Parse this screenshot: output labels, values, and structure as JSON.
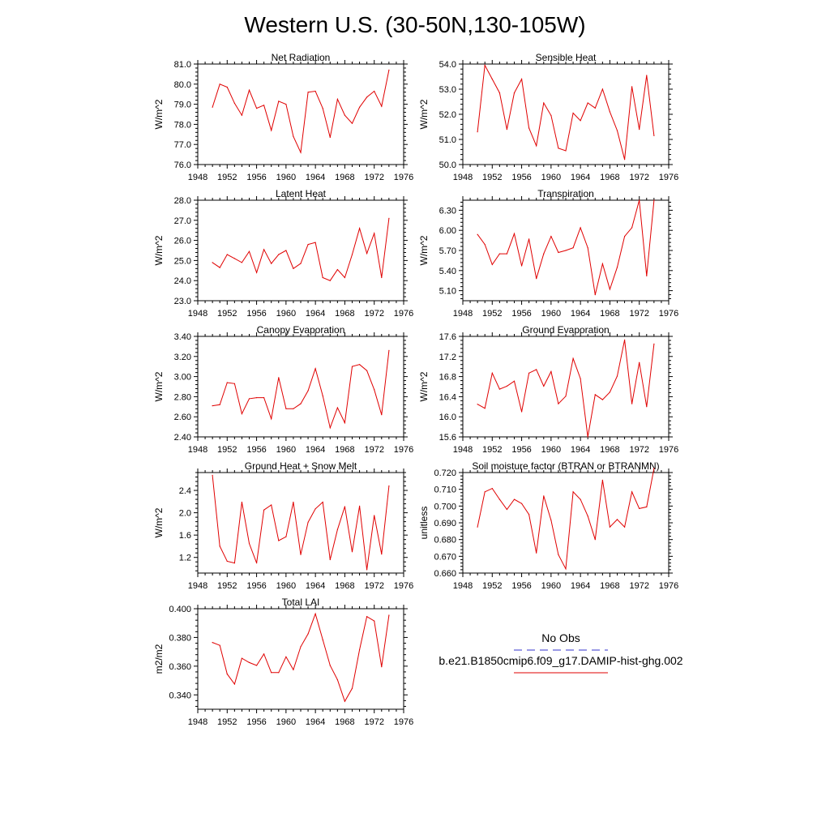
{
  "figure_title": "Western U.S. (30-50N,130-105W)",
  "colors": {
    "model": "#e00000",
    "obs": "#3333cc",
    "axis": "#000000"
  },
  "legend": {
    "obs_label": "No Obs",
    "model_label": "b.e21.B1850cmip6.f09_g17.DAMIP-hist-ghg.002"
  },
  "chart_data": [
    {
      "type": "line",
      "title": "Net Radiation",
      "ylabel": "W/m^2",
      "xlim": [
        1948,
        1976
      ],
      "ylim": [
        76.0,
        81.0
      ],
      "xticks": [
        1948,
        1952,
        1956,
        1960,
        1964,
        1968,
        1972,
        1976
      ],
      "yticks": [
        "76.0",
        "77.0",
        "78.0",
        "79.0",
        "80.0",
        "81.0"
      ],
      "x": [
        1950,
        1951,
        1952,
        1953,
        1954,
        1955,
        1956,
        1957,
        1958,
        1959,
        1960,
        1961,
        1962,
        1963,
        1964,
        1965,
        1966,
        1967,
        1968,
        1969,
        1970,
        1971,
        1972,
        1973,
        1974
      ],
      "series": [
        {
          "values": [
            78.85,
            80.0,
            79.85,
            79.05,
            78.45,
            79.7,
            78.8,
            78.95,
            77.7,
            79.15,
            79.0,
            77.4,
            76.6,
            79.6,
            79.65,
            78.8,
            77.35,
            79.25,
            78.45,
            78.05,
            78.85,
            79.35,
            79.65,
            78.9,
            80.7
          ]
        }
      ]
    },
    {
      "type": "line",
      "title": "Sensible Heat",
      "ylabel": "W/m^2",
      "xlim": [
        1948,
        1976
      ],
      "ylim": [
        50.0,
        54.0
      ],
      "xticks": [
        1948,
        1952,
        1956,
        1960,
        1964,
        1968,
        1972,
        1976
      ],
      "yticks": [
        "50.0",
        "51.0",
        "52.0",
        "53.0",
        "54.0"
      ],
      "x": [
        1950,
        1951,
        1952,
        1953,
        1954,
        1955,
        1956,
        1957,
        1958,
        1959,
        1960,
        1961,
        1962,
        1963,
        1964,
        1965,
        1966,
        1967,
        1968,
        1969,
        1970,
        1971,
        1972,
        1973,
        1974
      ],
      "series": [
        {
          "values": [
            51.3,
            53.95,
            53.4,
            52.85,
            51.4,
            52.85,
            53.4,
            51.45,
            50.75,
            52.45,
            51.95,
            50.65,
            50.55,
            52.05,
            51.75,
            52.45,
            52.25,
            53.0,
            52.1,
            51.35,
            50.2,
            53.1,
            51.4,
            53.55,
            51.15
          ]
        }
      ]
    },
    {
      "type": "line",
      "title": "Latent Heat",
      "ylabel": "W/m^2",
      "xlim": [
        1948,
        1976
      ],
      "ylim": [
        23.0,
        28.0
      ],
      "xticks": [
        1948,
        1952,
        1956,
        1960,
        1964,
        1968,
        1972,
        1976
      ],
      "yticks": [
        "23.0",
        "24.0",
        "25.0",
        "26.0",
        "27.0",
        "28.0"
      ],
      "x": [
        1950,
        1951,
        1952,
        1953,
        1954,
        1955,
        1956,
        1957,
        1958,
        1959,
        1960,
        1961,
        1962,
        1963,
        1964,
        1965,
        1966,
        1967,
        1968,
        1969,
        1970,
        1971,
        1972,
        1973,
        1974
      ],
      "series": [
        {
          "values": [
            24.9,
            24.65,
            25.3,
            25.1,
            24.9,
            25.45,
            24.4,
            25.55,
            24.85,
            25.3,
            25.5,
            24.6,
            24.85,
            25.8,
            25.9,
            24.15,
            24.0,
            24.55,
            24.15,
            25.3,
            26.6,
            25.35,
            26.35,
            24.15,
            27.1
          ]
        }
      ]
    },
    {
      "type": "line",
      "title": "Transpiration",
      "ylabel": "W/m^2",
      "xlim": [
        1948,
        1976
      ],
      "ylim": [
        4.95,
        6.45
      ],
      "xticks": [
        1948,
        1952,
        1956,
        1960,
        1964,
        1968,
        1972,
        1976
      ],
      "yticks": [
        "5.10",
        "5.40",
        "5.70",
        "6.00",
        "6.30"
      ],
      "x": [
        1950,
        1951,
        1952,
        1953,
        1954,
        1955,
        1956,
        1957,
        1958,
        1959,
        1960,
        1961,
        1962,
        1963,
        1964,
        1965,
        1966,
        1967,
        1968,
        1969,
        1970,
        1971,
        1972,
        1973,
        1974
      ],
      "series": [
        {
          "values": [
            5.94,
            5.79,
            5.49,
            5.65,
            5.65,
            5.95,
            5.47,
            5.87,
            5.28,
            5.65,
            5.91,
            5.67,
            5.7,
            5.74,
            6.04,
            5.74,
            5.04,
            5.5,
            5.12,
            5.45,
            5.91,
            6.04,
            6.45,
            5.32,
            6.45
          ]
        }
      ]
    },
    {
      "type": "line",
      "title": "Canopy Evaporation",
      "ylabel": "W/m^2",
      "xlim": [
        1948,
        1976
      ],
      "ylim": [
        2.4,
        3.4
      ],
      "xticks": [
        1948,
        1952,
        1956,
        1960,
        1964,
        1968,
        1972,
        1976
      ],
      "yticks": [
        "2.40",
        "2.60",
        "2.80",
        "3.00",
        "3.20",
        "3.40"
      ],
      "x": [
        1950,
        1951,
        1952,
        1953,
        1954,
        1955,
        1956,
        1957,
        1958,
        1959,
        1960,
        1961,
        1962,
        1963,
        1964,
        1965,
        1966,
        1967,
        1968,
        1969,
        1970,
        1971,
        1972,
        1973,
        1974
      ],
      "series": [
        {
          "values": [
            2.71,
            2.72,
            2.94,
            2.93,
            2.63,
            2.78,
            2.79,
            2.79,
            2.58,
            2.99,
            2.68,
            2.68,
            2.73,
            2.86,
            3.08,
            2.81,
            2.49,
            2.69,
            2.54,
            3.1,
            3.12,
            3.06,
            2.87,
            2.62,
            3.26
          ]
        }
      ]
    },
    {
      "type": "line",
      "title": "Ground Evaporation",
      "ylabel": "W/m^2",
      "xlim": [
        1948,
        1976
      ],
      "ylim": [
        15.6,
        17.6
      ],
      "xticks": [
        1948,
        1952,
        1956,
        1960,
        1964,
        1968,
        1972,
        1976
      ],
      "yticks": [
        "15.6",
        "16.0",
        "16.4",
        "16.8",
        "17.2",
        "17.6"
      ],
      "x": [
        1950,
        1951,
        1952,
        1953,
        1954,
        1955,
        1956,
        1957,
        1958,
        1959,
        1960,
        1961,
        1962,
        1963,
        1964,
        1965,
        1966,
        1967,
        1968,
        1969,
        1970,
        1971,
        1972,
        1973,
        1974
      ],
      "series": [
        {
          "values": [
            16.25,
            16.17,
            16.87,
            16.55,
            16.61,
            16.71,
            16.1,
            16.87,
            16.94,
            16.61,
            16.9,
            16.26,
            16.41,
            17.16,
            16.76,
            15.6,
            16.44,
            16.34,
            16.49,
            16.81,
            17.53,
            16.26,
            17.08,
            16.2,
            17.45
          ]
        }
      ]
    },
    {
      "type": "line",
      "title": "Ground Heat + Snow Melt",
      "ylabel": "W/m^2",
      "xlim": [
        1948,
        1976
      ],
      "ylim": [
        0.92,
        2.72
      ],
      "xticks": [
        1948,
        1952,
        1956,
        1960,
        1964,
        1968,
        1972,
        1976
      ],
      "yticks": [
        "1.2",
        "1.6",
        "2.0",
        "2.4"
      ],
      "x": [
        1950,
        1951,
        1952,
        1953,
        1954,
        1955,
        1956,
        1957,
        1958,
        1959,
        1960,
        1961,
        1962,
        1963,
        1964,
        1965,
        1966,
        1967,
        1968,
        1969,
        1970,
        1971,
        1972,
        1973,
        1974
      ],
      "series": [
        {
          "values": [
            2.67,
            1.4,
            1.13,
            1.1,
            2.19,
            1.45,
            1.1,
            2.05,
            2.14,
            1.5,
            1.57,
            2.19,
            1.25,
            1.83,
            2.07,
            2.19,
            1.16,
            1.7,
            2.11,
            1.3,
            2.12,
            0.98,
            1.95,
            1.26,
            2.48
          ]
        }
      ]
    },
    {
      "type": "line",
      "title": "Soil moisture factor (BTRAN or BTRANMN)",
      "ylabel": "unitless",
      "xlim": [
        1948,
        1976
      ],
      "ylim": [
        0.66,
        0.72
      ],
      "xticks": [
        1948,
        1952,
        1956,
        1960,
        1964,
        1968,
        1972,
        1976
      ],
      "yticks": [
        "0.660",
        "0.670",
        "0.680",
        "0.690",
        "0.700",
        "0.710",
        "0.720"
      ],
      "x": [
        1950,
        1951,
        1952,
        1953,
        1954,
        1955,
        1956,
        1957,
        1958,
        1959,
        1960,
        1961,
        1962,
        1963,
        1964,
        1965,
        1966,
        1967,
        1968,
        1969,
        1970,
        1971,
        1972,
        1973,
        1974
      ],
      "series": [
        {
          "values": [
            0.6875,
            0.7085,
            0.7105,
            0.704,
            0.698,
            0.704,
            0.7015,
            0.695,
            0.672,
            0.706,
            0.6915,
            0.671,
            0.6625,
            0.7085,
            0.704,
            0.694,
            0.68,
            0.7155,
            0.6875,
            0.692,
            0.6875,
            0.7085,
            0.6985,
            0.6995,
            0.7225
          ]
        }
      ]
    },
    {
      "type": "line",
      "title": "Total LAI",
      "ylabel": "m2/m2",
      "xlim": [
        1948,
        1976
      ],
      "ylim": [
        0.33,
        0.4
      ],
      "xticks": [
        1948,
        1952,
        1956,
        1960,
        1964,
        1968,
        1972,
        1976
      ],
      "yticks": [
        "0.340",
        "0.360",
        "0.380",
        "0.400"
      ],
      "x": [
        1950,
        1951,
        1952,
        1953,
        1954,
        1955,
        1956,
        1957,
        1958,
        1959,
        1960,
        1961,
        1962,
        1963,
        1964,
        1965,
        1966,
        1967,
        1968,
        1969,
        1970,
        1971,
        1972,
        1973,
        1974
      ],
      "series": [
        {
          "values": [
            0.3765,
            0.3745,
            0.3545,
            0.3475,
            0.3655,
            0.3625,
            0.3605,
            0.3685,
            0.3555,
            0.3555,
            0.3665,
            0.3575,
            0.3735,
            0.3825,
            0.3965,
            0.3785,
            0.3605,
            0.3505,
            0.3355,
            0.3445,
            0.3715,
            0.3945,
            0.3915,
            0.3595,
            0.3955
          ]
        }
      ]
    }
  ]
}
